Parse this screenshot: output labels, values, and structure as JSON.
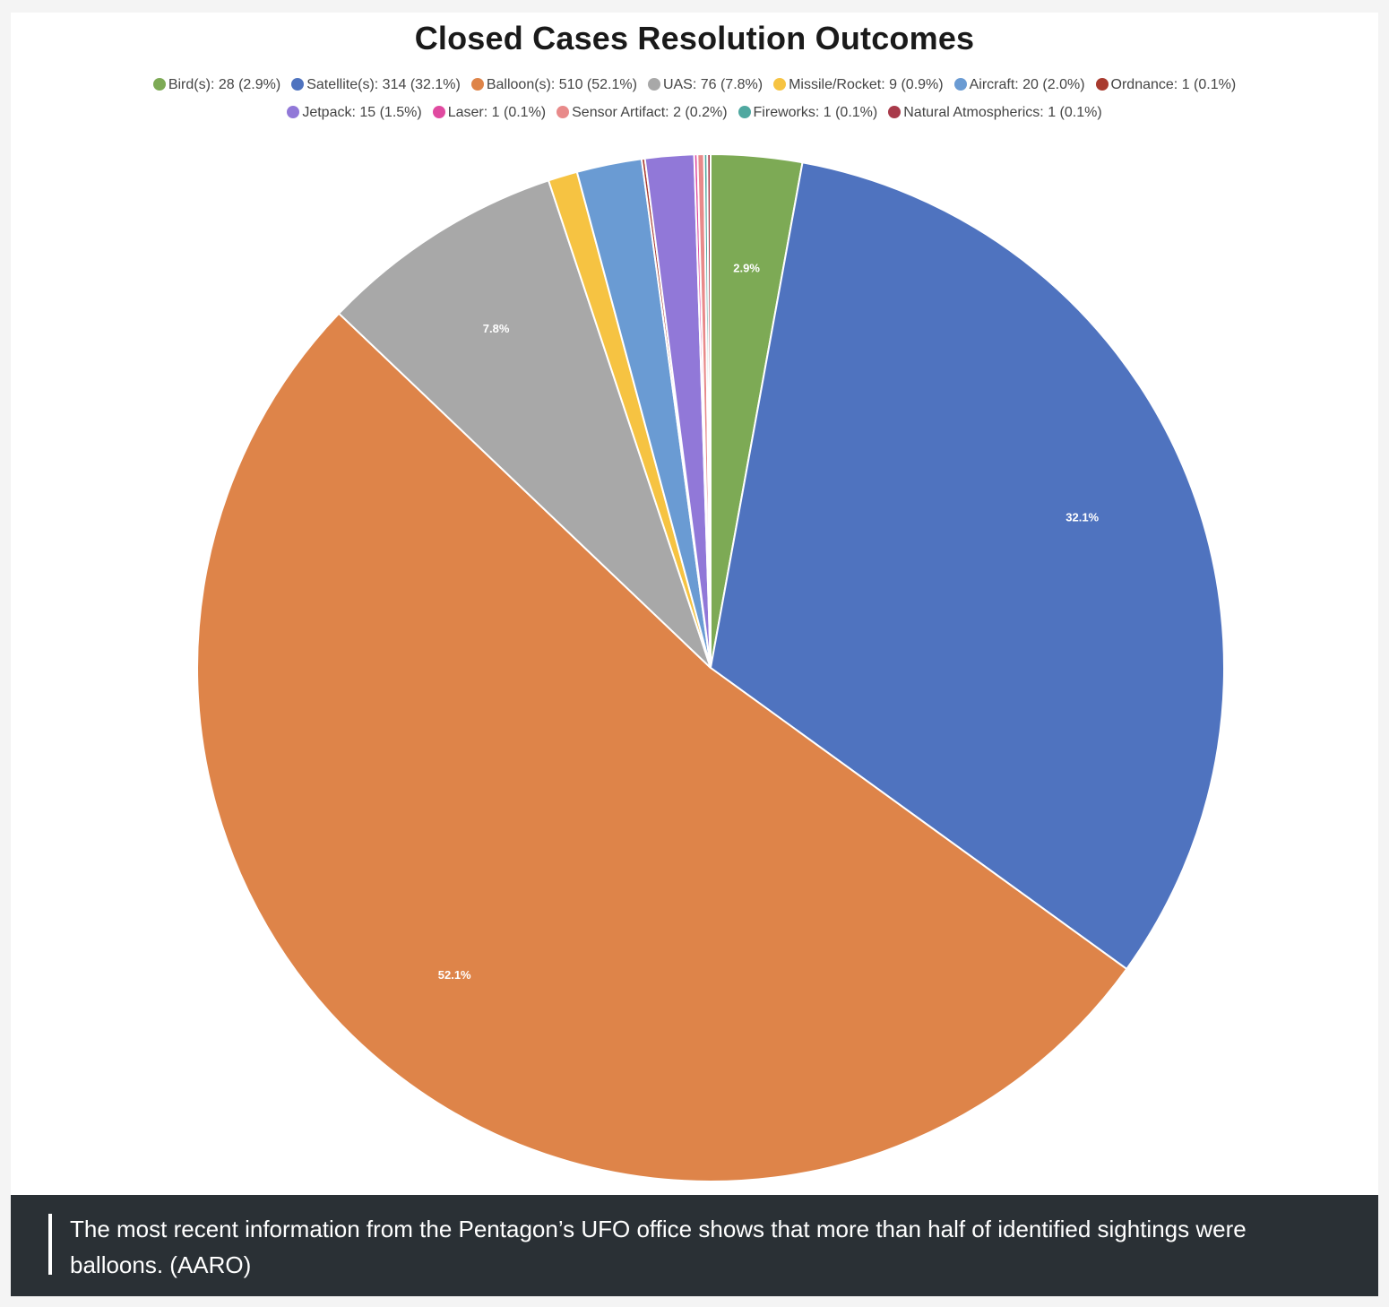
{
  "chart_data": {
    "type": "pie",
    "title": "Closed Cases Resolution Outcomes",
    "legend_position": "top",
    "slices": [
      {
        "label": "Bird(s)",
        "value": 28,
        "percent": "2.9%",
        "legend": "Bird(s): 28 (2.9%)",
        "color": "#7daa55",
        "show_label": true
      },
      {
        "label": "Satellite(s)",
        "value": 314,
        "percent": "32.1%",
        "legend": "Satellite(s): 314 (32.1%)",
        "color": "#4f73bf",
        "show_label": true
      },
      {
        "label": "Balloon(s)",
        "value": 510,
        "percent": "52.1%",
        "legend": "Balloon(s): 510 (52.1%)",
        "color": "#de8449",
        "show_label": true
      },
      {
        "label": "UAS",
        "value": 76,
        "percent": "7.8%",
        "legend": "UAS: 76 (7.8%)",
        "color": "#a8a8a8",
        "show_label": true
      },
      {
        "label": "Missile/Rocket",
        "value": 9,
        "percent": "0.9%",
        "legend": "Missile/Rocket: 9 (0.9%)",
        "color": "#f6c342",
        "show_label": false
      },
      {
        "label": "Aircraft",
        "value": 20,
        "percent": "2.0%",
        "legend": "Aircraft: 20 (2.0%)",
        "color": "#6a9bd3",
        "show_label": false
      },
      {
        "label": "Ordnance",
        "value": 1,
        "percent": "0.1%",
        "legend": "Ordnance: 1 (0.1%)",
        "color": "#a83a2e",
        "show_label": false
      },
      {
        "label": "Jetpack",
        "value": 15,
        "percent": "1.5%",
        "legend": "Jetpack: 15 (1.5%)",
        "color": "#9178d8",
        "show_label": false
      },
      {
        "label": "Laser",
        "value": 1,
        "percent": "0.1%",
        "legend": "Laser: 1 (0.1%)",
        "color": "#e04aa0",
        "show_label": false
      },
      {
        "label": "Sensor Artifact",
        "value": 2,
        "percent": "0.2%",
        "legend": "Sensor Artifact: 2 (0.2%)",
        "color": "#e88a8a",
        "show_label": false
      },
      {
        "label": "Fireworks",
        "value": 1,
        "percent": "0.1%",
        "legend": "Fireworks: 1 (0.1%)",
        "color": "#4fa8a0",
        "show_label": false
      },
      {
        "label": "Natural Atmospherics",
        "value": 1,
        "percent": "0.1%",
        "legend": "Natural Atmospherics: 1 (0.1%)",
        "color": "#a83a4a",
        "show_label": false
      }
    ]
  },
  "caption": {
    "text": "The most recent information from the Pentagon’s UFO office shows that more than half of identified sightings were balloons. (AARO)"
  }
}
